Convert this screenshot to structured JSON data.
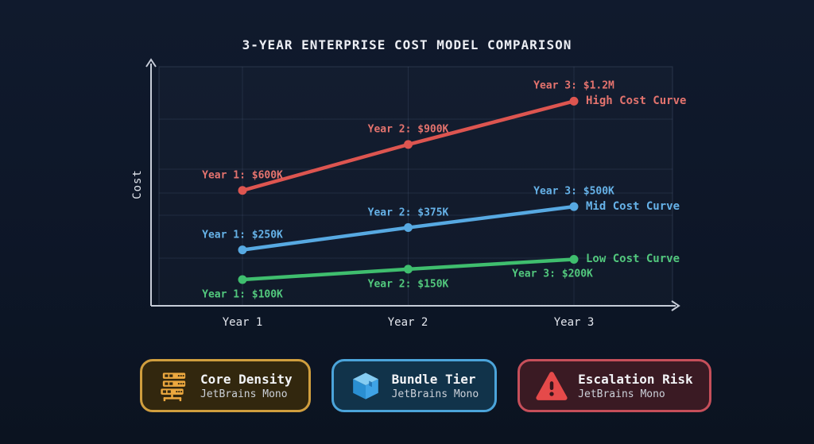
{
  "page": {
    "background": "#0d1627"
  },
  "chart_data": {
    "type": "line",
    "title": "3-YEAR ENTERPRISE COST MODEL COMPARISON",
    "xlabel": "",
    "ylabel": "Cost",
    "categories": [
      "Year 1",
      "Year 2",
      "Year 3"
    ],
    "series": [
      {
        "name": "High Cost Curve",
        "color": "#dd5550",
        "label_color": "#e4736e",
        "values": [
          600000,
          900000,
          1200000
        ],
        "point_labels": [
          "Year 1: $600K",
          "Year 2: $900K",
          "Year 3: $1.2M"
        ],
        "label_side": "above"
      },
      {
        "name": "Mid Cost Curve",
        "color": "#57a9e2",
        "label_color": "#66b2e8",
        "values": [
          250000,
          375000,
          500000
        ],
        "point_labels": [
          "Year 1: $250K",
          "Year 2: $375K",
          "Year 3: $500K"
        ],
        "label_side": "above"
      },
      {
        "name": "Low Cost Curve",
        "color": "#3fbe6e",
        "label_color": "#52c87d",
        "values": [
          100000,
          150000,
          200000
        ],
        "point_labels": [
          "Year 1: $100K",
          "Year 2: $150K",
          "Year 3: $200K"
        ],
        "label_side": "below"
      }
    ],
    "ylim": [
      0,
      1300000
    ],
    "grid": true,
    "legend_position": "line-end",
    "axis_color": "#c6ccd8"
  },
  "cards": [
    {
      "title": "Core Density",
      "subtitle": "JetBrains Mono",
      "icon": "server-rack-icon",
      "accent": "#d09e3e",
      "bg": "#32270e"
    },
    {
      "title": "Bundle Tier",
      "subtitle": "JetBrains Mono",
      "icon": "package-box-icon",
      "accent": "#4ba4da",
      "bg": "#11334a"
    },
    {
      "title": "Escalation Risk",
      "subtitle": "JetBrains Mono",
      "icon": "warning-triangle-icon",
      "accent": "#c64f5a",
      "bg": "#3a1a23"
    }
  ]
}
